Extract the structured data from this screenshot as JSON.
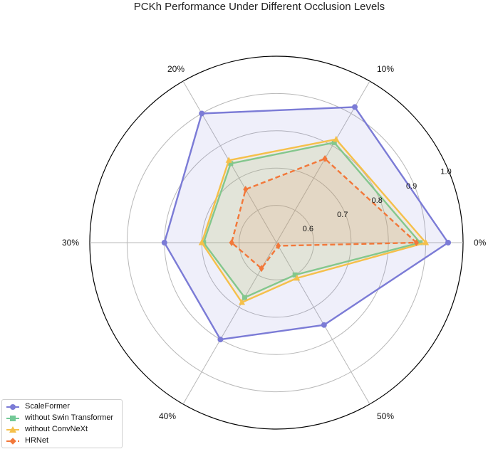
{
  "chart_data": {
    "type": "radar",
    "title": "PCKh Performance Under Different Occlusion Levels",
    "categories": [
      "0%",
      "10%",
      "20%",
      "30%",
      "40%",
      "50%"
    ],
    "radial_ticks": [
      "0.6",
      "0.7",
      "0.8",
      "0.9",
      "1.0"
    ],
    "radial_tick_values": [
      0.6,
      0.7,
      0.8,
      0.9,
      1.0
    ],
    "rlim": [
      0.5,
      1.0
    ],
    "grid": true,
    "legend_position": "lower-left",
    "series": [
      {
        "name": "ScaleFormer",
        "color": "#7b7bd6",
        "marker": "circle",
        "line": "solid",
        "fill": true,
        "values": [
          0.96,
          0.92,
          0.9,
          0.8,
          0.8,
          0.755
        ]
      },
      {
        "name": "without Swin Transformer",
        "color": "#73c997",
        "marker": "square",
        "line": "solid",
        "fill": true,
        "values": [
          0.885,
          0.81,
          0.745,
          0.695,
          0.67,
          0.6
        ]
      },
      {
        "name": "without ConvNeXt",
        "color": "#f5c04a",
        "marker": "triangle",
        "line": "solid",
        "fill": true,
        "values": [
          0.9,
          0.82,
          0.755,
          0.7,
          0.685,
          0.61
        ]
      },
      {
        "name": "HRNet",
        "color": "#f2783a",
        "marker": "diamond",
        "line": "dashed",
        "fill": true,
        "values": [
          0.875,
          0.76,
          0.665,
          0.62,
          0.58,
          0.51
        ]
      }
    ]
  }
}
